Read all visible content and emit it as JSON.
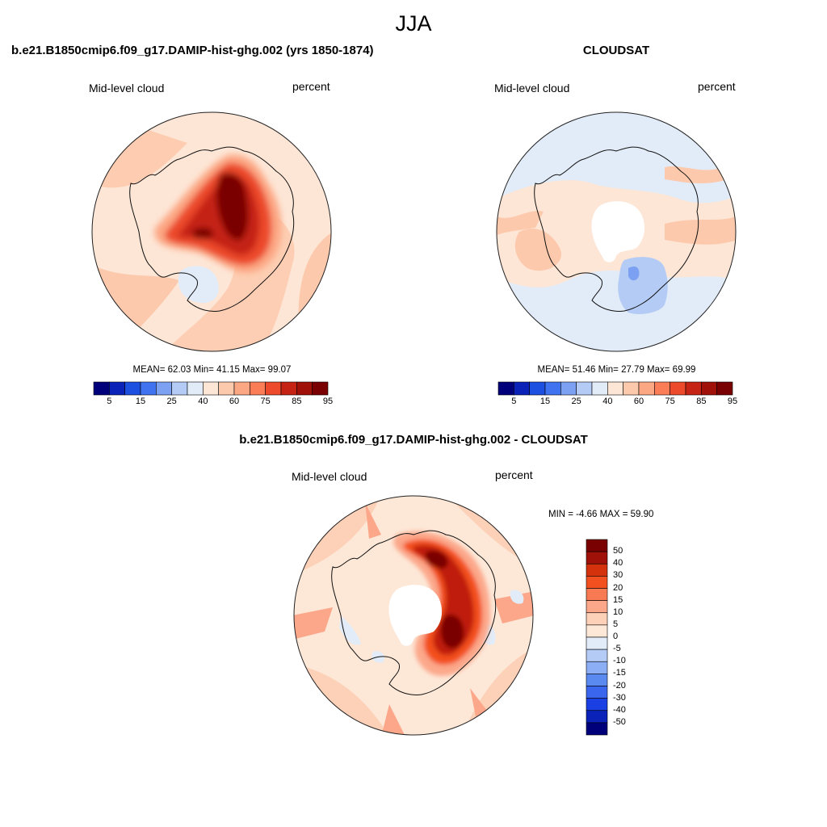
{
  "figure_title": "JJA",
  "colors": {
    "abs_scale": [
      "#00007a",
      "#0a22b8",
      "#1d4fe0",
      "#3f73f0",
      "#7da1f2",
      "#b4cbf5",
      "#e2ecf8",
      "#fde6d6",
      "#fdc9ad",
      "#fca784",
      "#fa7d58",
      "#ec4a2a",
      "#c52313",
      "#a01209",
      "#7a0101"
    ],
    "diff_scale": [
      "#7a0101",
      "#a01209",
      "#d4320d",
      "#f3501f",
      "#f87a52",
      "#fca78a",
      "#fdd0b8",
      "#fde8d8",
      "#e2ecf8",
      "#b4cbf5",
      "#8caef4",
      "#5a8af0",
      "#3a66ee",
      "#1a40e4",
      "#0a22b8",
      "#00007a"
    ]
  },
  "panel_model": {
    "title": "b.e21.B1850cmip6.f09_g17.DAMIP-hist-ghg.002 (yrs 1850-1874)",
    "variable": "Mid-level cloud",
    "units": "percent",
    "stats": "MEAN=  62.03  Min=  41.15  Max=  99.07"
  },
  "panel_obs": {
    "title": "CLOUDSAT",
    "variable": "Mid-level cloud",
    "units": "percent",
    "stats": "MEAN=  51.46  Min=  27.79  Max=  69.99"
  },
  "panel_diff": {
    "title": "b.e21.B1850cmip6.f09_g17.DAMIP-hist-ghg.002 - CLOUDSAT",
    "variable": "Mid-level cloud",
    "units": "percent",
    "stats": "MIN =  -4.66 MAX =  59.90"
  },
  "abs_colorbar": {
    "tick_labels": [
      "5",
      "15",
      "25",
      "40",
      "60",
      "75",
      "85",
      "95"
    ]
  },
  "diff_colorbar": {
    "tick_labels": [
      "50",
      "40",
      "30",
      "20",
      "15",
      "10",
      "5",
      "0",
      "-5",
      "-10",
      "-15",
      "-20",
      "-30",
      "-40",
      "-50"
    ]
  }
}
